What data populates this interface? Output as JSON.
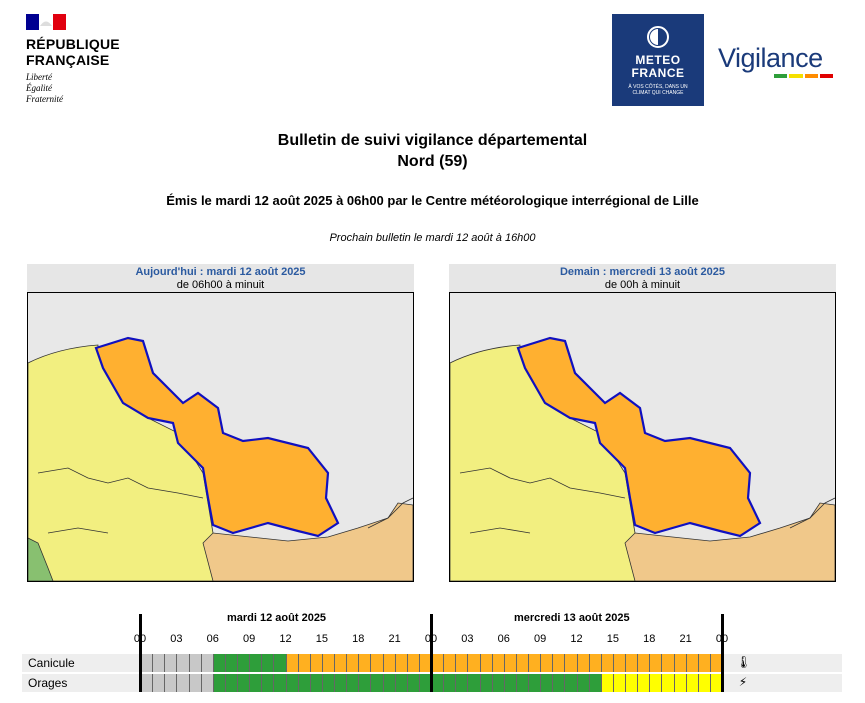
{
  "header": {
    "republic_line1": "RÉPUBLIQUE",
    "republic_line2": "FRANÇAISE",
    "motto": [
      "Liberté",
      "Égalité",
      "Fraternité"
    ],
    "meteo_line1": "METEO",
    "meteo_line2": "FRANCE",
    "meteo_tagline_1": "À VOS CÔTÉS, DANS UN",
    "meteo_tagline_2": "CLIMAT QUI CHANGE",
    "vigilance_logo": "Vigilance"
  },
  "bulletin": {
    "title": "Bulletin de suivi vigilance départemental",
    "department": "Nord (59)",
    "issued": "Émis le mardi 12 août 2025 à 06h00 par le Centre météorologique interrégional de Lille",
    "next": "Prochain bulletin le mardi 12 août à 16h00"
  },
  "maps": [
    {
      "day": "Aujourd'hui : mardi 12 août 2025",
      "hours": "de 06h00 à minuit"
    },
    {
      "day": "Demain : mercredi 13 août 2025",
      "hours": "de 00h à minuit"
    }
  ],
  "colors": {
    "green": "#2e9e3a",
    "yellow": "#ffff00",
    "orange": "#ffb020",
    "grey": "#c8c8c8",
    "map_yellow": "#f2ef80",
    "map_orange": "#ffb030",
    "map_tan": "#f0c88a",
    "map_green": "#88c070",
    "border_blue": "#1010c0"
  },
  "timeline": {
    "days": [
      "mardi 12 août 2025",
      "mercredi 13 août 2025"
    ],
    "hours": [
      "00",
      "03",
      "06",
      "09",
      "12",
      "15",
      "18",
      "21",
      "00",
      "03",
      "06",
      "09",
      "12",
      "15",
      "18",
      "21",
      "00"
    ],
    "phenomena": [
      {
        "label": "Canicule",
        "icon": "thermometer-icon",
        "segments": [
          {
            "from": 0,
            "to": 6,
            "level": "grey"
          },
          {
            "from": 6,
            "to": 12,
            "level": "green"
          },
          {
            "from": 12,
            "to": 48,
            "level": "orange"
          }
        ]
      },
      {
        "label": "Orages",
        "icon": "lightning-icon",
        "segments": [
          {
            "from": 0,
            "to": 6,
            "level": "grey"
          },
          {
            "from": 6,
            "to": 38,
            "level": "green"
          },
          {
            "from": 38,
            "to": 48,
            "level": "yellow"
          }
        ]
      }
    ]
  }
}
